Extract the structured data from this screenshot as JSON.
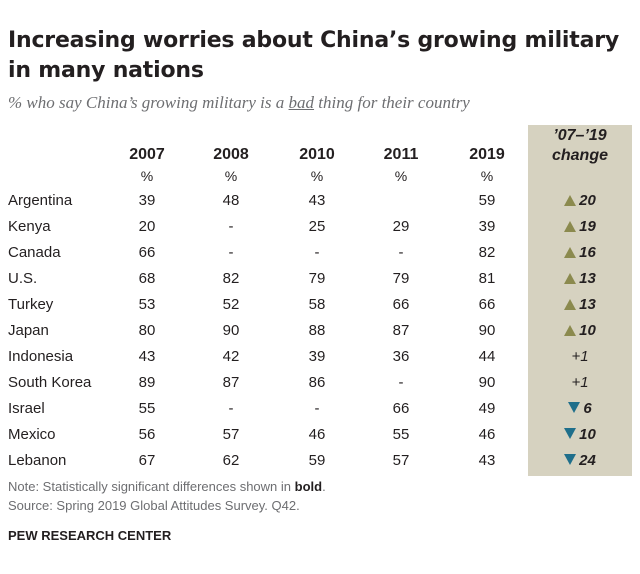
{
  "header": {
    "title": "Increasing worries about China’s growing military in many nations",
    "subtitle_pre": "% who say China’s growing military is a ",
    "subtitle_em": "bad",
    "subtitle_post": " thing for their country"
  },
  "chart_data": {
    "type": "table",
    "columns": [
      "2007",
      "2008",
      "2010",
      "2011",
      "2019"
    ],
    "unit_label": "%",
    "change_header_line1": "’07–’19",
    "change_header_line2": "change",
    "rows": [
      {
        "country": "Argentina",
        "values": [
          "39",
          "48",
          "43",
          "",
          "59"
        ],
        "change": "20",
        "direction": "up",
        "significant": true
      },
      {
        "country": "Kenya",
        "values": [
          "20",
          "-",
          "25",
          "29",
          "39"
        ],
        "change": "19",
        "direction": "up",
        "significant": true
      },
      {
        "country": "Canada",
        "values": [
          "66",
          "-",
          "-",
          "-",
          "82"
        ],
        "change": "16",
        "direction": "up",
        "significant": true
      },
      {
        "country": "U.S.",
        "values": [
          "68",
          "82",
          "79",
          "79",
          "81"
        ],
        "change": "13",
        "direction": "up",
        "significant": true
      },
      {
        "country": "Turkey",
        "values": [
          "53",
          "52",
          "58",
          "66",
          "66"
        ],
        "change": "13",
        "direction": "up",
        "significant": true
      },
      {
        "country": "Japan",
        "values": [
          "80",
          "90",
          "88",
          "87",
          "90"
        ],
        "change": "10",
        "direction": "up",
        "significant": true
      },
      {
        "country": "Indonesia",
        "values": [
          "43",
          "42",
          "39",
          "36",
          "44"
        ],
        "change": "+1",
        "direction": "none",
        "significant": false
      },
      {
        "country": "South Korea",
        "values": [
          "89",
          "87",
          "86",
          "-",
          "90"
        ],
        "change": "+1",
        "direction": "none",
        "significant": false
      },
      {
        "country": "Israel",
        "values": [
          "55",
          "-",
          "-",
          "66",
          "49"
        ],
        "change": "6",
        "direction": "down",
        "significant": true
      },
      {
        "country": "Mexico",
        "values": [
          "56",
          "57",
          "46",
          "55",
          "46"
        ],
        "change": "10",
        "direction": "down",
        "significant": true
      },
      {
        "country": "Lebanon",
        "values": [
          "67",
          "62",
          "59",
          "57",
          "43"
        ],
        "change": "24",
        "direction": "down",
        "significant": true
      }
    ]
  },
  "footer": {
    "note_pre": "Note: Statistically significant differences shown in ",
    "note_bold": "bold",
    "note_post": ".",
    "source": "Source: Spring 2019 Global Attitudes Survey. Q42.",
    "brand": "PEW RESEARCH CENTER"
  },
  "colors": {
    "change_bg": "#d6d2c0",
    "up_triangle": "#8b8a4e",
    "down_triangle": "#1f6f8b"
  }
}
